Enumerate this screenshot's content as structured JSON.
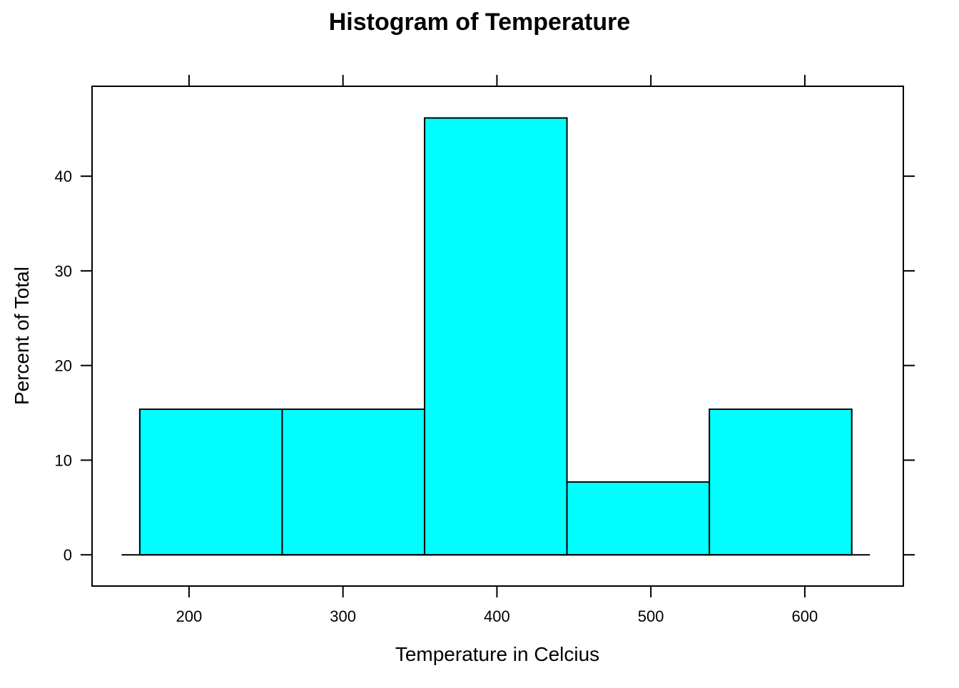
{
  "chart_data": {
    "type": "bar",
    "subtype": "histogram",
    "title": "Histogram of Temperature",
    "xlabel": "Temperature in Celcius",
    "ylabel": "Percent of Total",
    "bins": [
      {
        "start": 168,
        "end": 260.5,
        "value": 15.38
      },
      {
        "start": 260.5,
        "end": 353,
        "value": 15.38
      },
      {
        "start": 353,
        "end": 445.5,
        "value": 46.15
      },
      {
        "start": 445.5,
        "end": 538,
        "value": 7.69
      },
      {
        "start": 538,
        "end": 630.5,
        "value": 15.38
      }
    ],
    "x_ticks": [
      "200",
      "300",
      "400",
      "500",
      "600"
    ],
    "y_ticks": [
      "0",
      "10",
      "20",
      "30",
      "40"
    ],
    "xlim": [
      137,
      664
    ],
    "ylim": [
      -3.3,
      49.5
    ],
    "grid": false,
    "bar_fill": "#00ffff",
    "bar_stroke": "#000000"
  }
}
